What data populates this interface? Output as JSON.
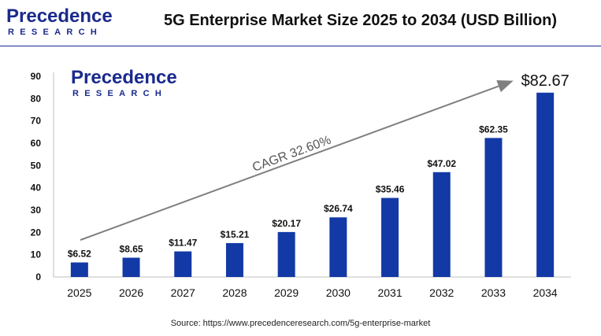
{
  "header": {
    "logo_word": "Precedence",
    "logo_sub": "RESEARCH",
    "title": "5G Enterprise Market Size 2025 to 2034 (USD Billion)"
  },
  "watermark": {
    "logo_word": "Precedence",
    "logo_sub": "RESEARCH"
  },
  "source": "Source: https://www.precedenceresearch.com/5g-enterprise-market",
  "colors": {
    "bar": "#1239a6",
    "brand": "#1a2a8c",
    "arrow": "#7f7f7f"
  },
  "chart_data": {
    "type": "bar",
    "title": "5G Enterprise Market Size 2025 to 2034 (USD Billion)",
    "xlabel": "",
    "ylabel": "",
    "categories": [
      "2025",
      "2026",
      "2027",
      "2028",
      "2029",
      "2030",
      "2031",
      "2032",
      "2033",
      "2034"
    ],
    "values": [
      6.52,
      8.65,
      11.47,
      15.21,
      20.17,
      26.74,
      35.46,
      47.02,
      62.35,
      82.67
    ],
    "data_labels": [
      "$6.52",
      "$8.65",
      "$11.47",
      "$15.21",
      "$20.17",
      "$26.74",
      "$35.46",
      "$47.02",
      "$62.35",
      "$82.67"
    ],
    "ylim": [
      0,
      90
    ],
    "yticks": [
      0,
      10,
      20,
      30,
      40,
      50,
      60,
      70,
      80,
      90
    ],
    "grid": false,
    "annotation": "CAGR 32.60%"
  }
}
